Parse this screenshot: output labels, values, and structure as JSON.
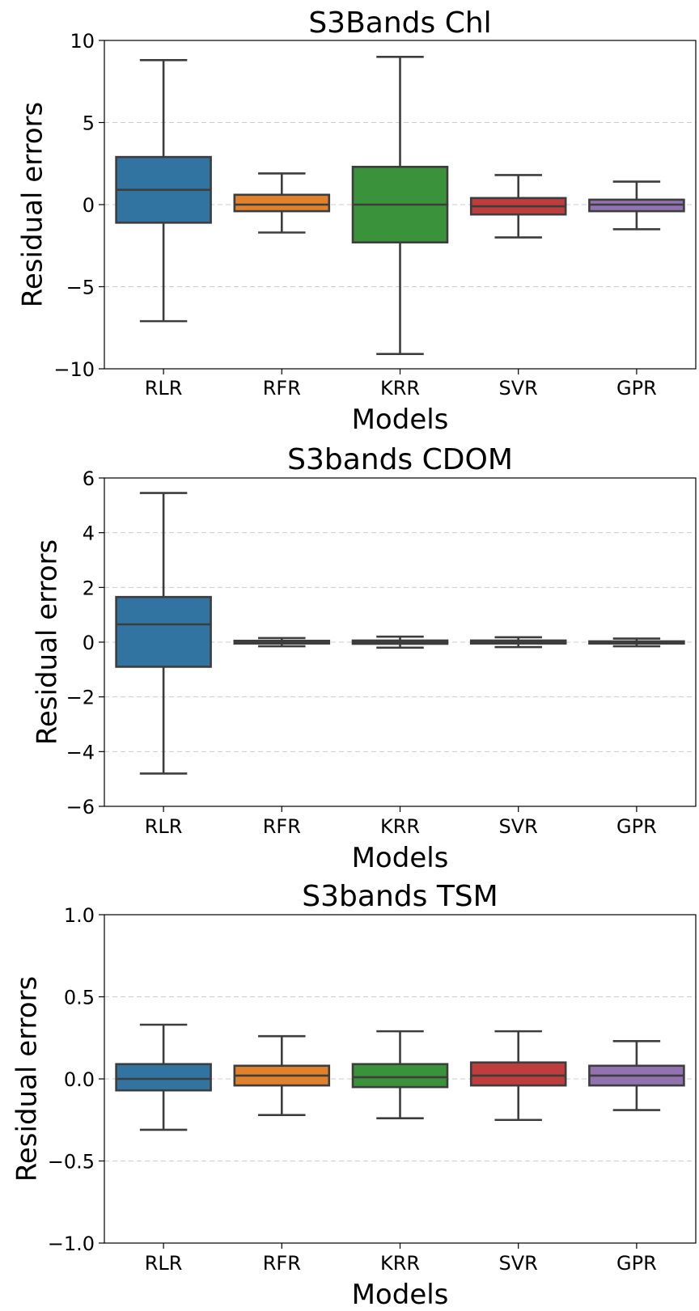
{
  "chart_data": [
    {
      "type": "box",
      "title": "S3Bands Chl",
      "xlabel": "Models",
      "ylabel": "Residual errors",
      "ylim": [
        -10,
        10
      ],
      "yticks": [
        10,
        5,
        0,
        -5,
        -10
      ],
      "ytick_labels": [
        "10",
        "5",
        "0",
        "−5",
        "−10"
      ],
      "grid": "dashed horizontal",
      "categories": [
        "RLR",
        "RFR",
        "KRR",
        "SVR",
        "GPR"
      ],
      "colors": [
        "#3274a1",
        "#e1812c",
        "#3a923a",
        "#c03d3e",
        "#9372b2"
      ],
      "boxes": [
        {
          "whislo": -7.1,
          "q1": -1.1,
          "med": 0.9,
          "q3": 2.9,
          "whishi": 8.8
        },
        {
          "whislo": -1.7,
          "q1": -0.4,
          "med": 0.0,
          "q3": 0.6,
          "whishi": 1.9
        },
        {
          "whislo": -9.1,
          "q1": -2.3,
          "med": 0.0,
          "q3": 2.3,
          "whishi": 9.0
        },
        {
          "whislo": -2.0,
          "q1": -0.6,
          "med": -0.1,
          "q3": 0.4,
          "whishi": 1.8
        },
        {
          "whislo": -1.5,
          "q1": -0.4,
          "med": 0.0,
          "q3": 0.3,
          "whishi": 1.4
        }
      ]
    },
    {
      "type": "box",
      "title": "S3bands CDOM",
      "xlabel": "Models",
      "ylabel": "Residual errors",
      "ylim": [
        -6,
        6
      ],
      "yticks": [
        6,
        4,
        2,
        0,
        -2,
        -4,
        -6
      ],
      "ytick_labels": [
        "6",
        "4",
        "2",
        "0",
        "−2",
        "−4",
        "−6"
      ],
      "grid": "dashed horizontal",
      "categories": [
        "RLR",
        "RFR",
        "KRR",
        "SVR",
        "GPR"
      ],
      "colors": [
        "#3274a1",
        "#e1812c",
        "#3a923a",
        "#c03d3e",
        "#9372b2"
      ],
      "boxes": [
        {
          "whislo": -4.8,
          "q1": -0.9,
          "med": 0.65,
          "q3": 1.65,
          "whishi": 5.45
        },
        {
          "whislo": -0.15,
          "q1": -0.05,
          "med": 0.0,
          "q3": 0.05,
          "whishi": 0.15
        },
        {
          "whislo": -0.2,
          "q1": -0.06,
          "med": 0.0,
          "q3": 0.06,
          "whishi": 0.2
        },
        {
          "whislo": -0.18,
          "q1": -0.05,
          "med": 0.0,
          "q3": 0.06,
          "whishi": 0.18
        },
        {
          "whislo": -0.15,
          "q1": -0.05,
          "med": 0.0,
          "q3": 0.03,
          "whishi": 0.13
        }
      ]
    },
    {
      "type": "box",
      "title": "S3bands TSM",
      "xlabel": "Models",
      "ylabel": "Residual errors",
      "ylim": [
        -1.0,
        1.0
      ],
      "yticks": [
        1.0,
        0.5,
        0.0,
        -0.5,
        -1.0
      ],
      "ytick_labels": [
        "1.0",
        "0.5",
        "0.0",
        "−0.5",
        "−1.0"
      ],
      "grid": "dashed horizontal",
      "categories": [
        "RLR",
        "RFR",
        "KRR",
        "SVR",
        "GPR"
      ],
      "colors": [
        "#3274a1",
        "#e1812c",
        "#3a923a",
        "#c03d3e",
        "#9372b2"
      ],
      "boxes": [
        {
          "whislo": -0.31,
          "q1": -0.07,
          "med": 0.0,
          "q3": 0.09,
          "whishi": 0.33
        },
        {
          "whislo": -0.22,
          "q1": -0.04,
          "med": 0.02,
          "q3": 0.08,
          "whishi": 0.26
        },
        {
          "whislo": -0.24,
          "q1": -0.05,
          "med": 0.01,
          "q3": 0.09,
          "whishi": 0.29
        },
        {
          "whislo": -0.25,
          "q1": -0.04,
          "med": 0.02,
          "q3": 0.1,
          "whishi": 0.29
        },
        {
          "whislo": -0.19,
          "q1": -0.04,
          "med": 0.02,
          "q3": 0.08,
          "whishi": 0.23
        }
      ]
    }
  ]
}
